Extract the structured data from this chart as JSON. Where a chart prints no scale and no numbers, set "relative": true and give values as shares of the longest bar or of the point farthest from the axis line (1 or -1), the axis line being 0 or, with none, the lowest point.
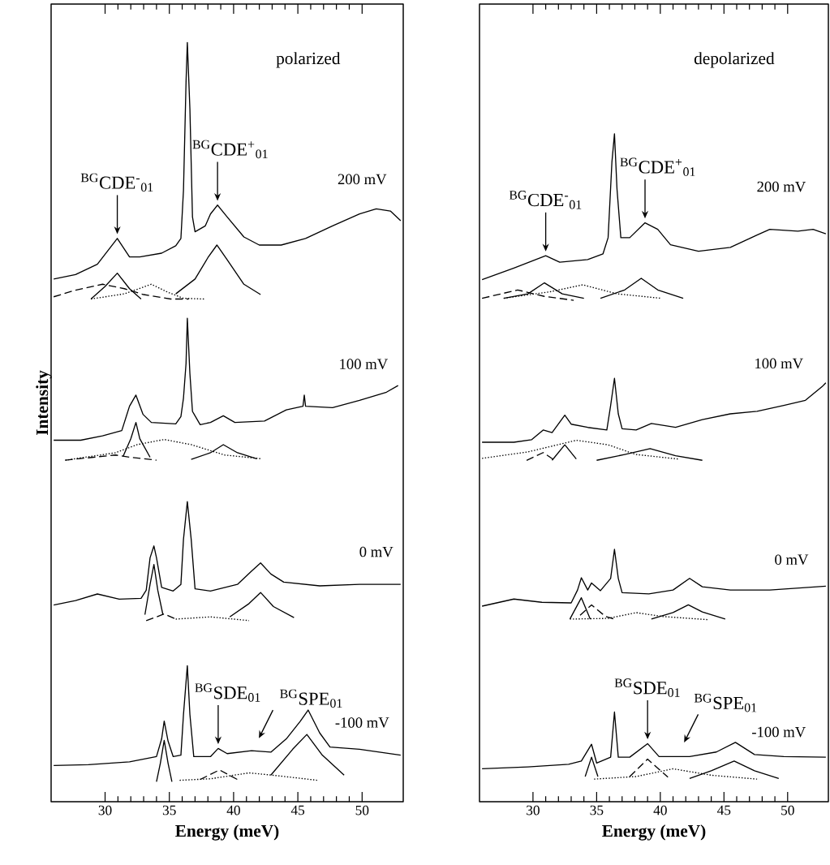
{
  "chart_data": [
    {
      "type": "line",
      "relative": true,
      "title": "polarized",
      "xlabel": "Energy (meV)",
      "ylabel": "Intensity",
      "xlim": [
        25.8,
        53.2
      ],
      "xticks": [
        30,
        35,
        40,
        45,
        50
      ],
      "series": [
        {
          "color": "#000000",
          "line_style": "solid",
          "x": [
            26.0,
            27.7,
            29.4,
            30.95,
            31.9,
            32.7,
            34.4,
            35.5,
            35.9,
            36.1,
            36.3,
            36.4,
            36.6,
            36.8,
            37.0,
            37.8,
            38.2,
            38.75,
            39.5,
            40.8,
            42.0,
            43.7,
            45.6,
            47.7,
            49.8,
            51.1,
            52.2,
            53.0
          ],
          "values": [
            0.68,
            0.686,
            0.7,
            0.735,
            0.71,
            0.71,
            0.715,
            0.725,
            0.735,
            0.8,
            0.947,
            1.0,
            0.91,
            0.764,
            0.744,
            0.752,
            0.768,
            0.78,
            0.764,
            0.737,
            0.726,
            0.726,
            0.735,
            0.752,
            0.768,
            0.775,
            0.772,
            0.759
          ]
        },
        {
          "color": "#000000",
          "line_style": "dashed",
          "x": [
            26.0,
            27.7,
            29.8,
            31.5,
            33.0,
            35.1,
            36.5
          ],
          "values": [
            0.656,
            0.665,
            0.673,
            0.667,
            0.659,
            0.653,
            0.653
          ]
        },
        {
          "color": "#000000",
          "line_style": "solid",
          "x": [
            28.9,
            30.0,
            30.95,
            31.9,
            32.8
          ],
          "values": [
            0.653,
            0.67,
            0.688,
            0.667,
            0.653
          ]
        },
        {
          "color": "#000000",
          "line_style": "dotted",
          "x": [
            28.9,
            31.5,
            33.6,
            34.9,
            36.1,
            37.7
          ],
          "values": [
            0.653,
            0.66,
            0.673,
            0.662,
            0.654,
            0.653
          ]
        },
        {
          "color": "#000000",
          "line_style": "solid",
          "x": [
            35.5,
            37.0,
            38.0,
            38.7,
            39.5,
            40.8,
            42.1
          ],
          "values": [
            0.66,
            0.68,
            0.709,
            0.726,
            0.706,
            0.673,
            0.659
          ]
        },
        {
          "color": "#000000",
          "line_style": "solid",
          "x": [
            26.0,
            28.1,
            29.8,
            31.3,
            31.9,
            32.4,
            32.95,
            33.6,
            35.5,
            35.9,
            36.1,
            36.3,
            36.4,
            36.6,
            36.8,
            37.4,
            38.2,
            39.2,
            40.1,
            42.4,
            44.1,
            45.4,
            45.5,
            45.6,
            47.7,
            49.8,
            51.9,
            52.8
          ],
          "values": [
            0.462,
            0.462,
            0.468,
            0.475,
            0.508,
            0.523,
            0.497,
            0.486,
            0.484,
            0.494,
            0.519,
            0.566,
            0.627,
            0.552,
            0.501,
            0.483,
            0.486,
            0.495,
            0.486,
            0.488,
            0.503,
            0.508,
            0.523,
            0.508,
            0.506,
            0.516,
            0.527,
            0.536
          ]
        },
        {
          "color": "#000000",
          "line_style": "dashed",
          "x": [
            26.9,
            30.8,
            31.9,
            34.0
          ],
          "values": [
            0.435,
            0.442,
            0.439,
            0.435
          ]
        },
        {
          "color": "#000000",
          "line_style": "solid",
          "x": [
            31.4,
            32.0,
            32.4,
            32.7,
            33.5
          ],
          "values": [
            0.44,
            0.464,
            0.486,
            0.464,
            0.439
          ]
        },
        {
          "color": "#000000",
          "line_style": "dotted",
          "x": [
            26.9,
            30.8,
            32.5,
            34.6,
            36.7,
            39.3,
            42.1
          ],
          "values": [
            0.435,
            0.445,
            0.456,
            0.463,
            0.456,
            0.442,
            0.437
          ]
        },
        {
          "color": "#000000",
          "line_style": "solid",
          "x": [
            36.7,
            38.2,
            39.2,
            40.3,
            41.8
          ],
          "values": [
            0.436,
            0.445,
            0.456,
            0.445,
            0.437
          ]
        },
        {
          "color": "#000000",
          "line_style": "solid",
          "x": [
            26.0,
            27.7,
            29.4,
            31.1,
            32.8,
            33.2,
            33.5,
            33.8,
            34.0,
            34.4,
            35.3,
            35.9,
            36.1,
            36.4,
            36.7,
            37.0,
            38.2,
            40.3,
            41.4,
            42.1,
            42.9,
            43.9,
            46.7,
            49.8,
            53.0
          ],
          "values": [
            0.239,
            0.245,
            0.254,
            0.247,
            0.248,
            0.259,
            0.303,
            0.319,
            0.303,
            0.263,
            0.258,
            0.267,
            0.328,
            0.379,
            0.328,
            0.261,
            0.258,
            0.267,
            0.285,
            0.296,
            0.281,
            0.27,
            0.265,
            0.267,
            0.267
          ]
        },
        {
          "color": "#000000",
          "line_style": "solid",
          "x": [
            33.1,
            33.5,
            33.8,
            34.1,
            34.5
          ],
          "values": [
            0.226,
            0.267,
            0.294,
            0.259,
            0.226
          ]
        },
        {
          "color": "#000000",
          "line_style": "dashed",
          "x": [
            33.2,
            34.0,
            34.6,
            35.5
          ],
          "values": [
            0.218,
            0.223,
            0.227,
            0.22
          ]
        },
        {
          "color": "#000000",
          "line_style": "dotted",
          "x": [
            35.5,
            38.2,
            41.2
          ],
          "values": [
            0.22,
            0.223,
            0.218
          ]
        },
        {
          "color": "#000000",
          "line_style": "solid",
          "x": [
            39.7,
            41.2,
            42.1,
            43.1,
            44.7
          ],
          "values": [
            0.223,
            0.241,
            0.256,
            0.237,
            0.222
          ]
        },
        {
          "color": "#000000",
          "line_style": "solid",
          "x": [
            26.0,
            28.7,
            31.9,
            34.0,
            34.4,
            34.6,
            34.9,
            35.3,
            35.9,
            36.1,
            36.4,
            36.6,
            36.9,
            38.2,
            38.8,
            39.5,
            41.4,
            42.9,
            44.1,
            45.2,
            45.8,
            46.7,
            47.5,
            49.8,
            53.0
          ],
          "values": [
            0.022,
            0.023,
            0.027,
            0.034,
            0.058,
            0.082,
            0.055,
            0.034,
            0.036,
            0.091,
            0.157,
            0.091,
            0.034,
            0.034,
            0.045,
            0.038,
            0.042,
            0.04,
            0.058,
            0.082,
            0.097,
            0.066,
            0.047,
            0.044,
            0.036
          ]
        },
        {
          "color": "#000000",
          "line_style": "solid",
          "x": [
            34.0,
            34.3,
            34.6,
            34.9,
            35.2
          ],
          "values": [
            0.0,
            0.025,
            0.056,
            0.025,
            0.0
          ]
        },
        {
          "color": "#000000",
          "line_style": "dotted",
          "x": [
            35.8,
            38.2,
            41.2,
            43.5,
            46.5
          ],
          "values": [
            0.002,
            0.004,
            0.012,
            0.008,
            0.002
          ]
        },
        {
          "color": "#000000",
          "line_style": "dashed",
          "x": [
            37.4,
            38.9,
            40.3
          ],
          "values": [
            0.003,
            0.016,
            0.003
          ]
        },
        {
          "color": "#000000",
          "line_style": "solid",
          "x": [
            42.9,
            44.6,
            45.7,
            46.9,
            48.6
          ],
          "values": [
            0.009,
            0.044,
            0.064,
            0.036,
            0.009
          ]
        }
      ],
      "annotations": [
        {
          "text": "$^{BG}$CDE$^{-}$$_{01}$",
          "x": 30.95,
          "y": 0.735
        },
        {
          "text": "$^{BG}$CDE$^{+}$$_{01}$",
          "x": 38.75,
          "y": 0.78
        },
        "200 mV",
        "100 mV",
        "0 mV",
        {
          "text": "$^{BG}$SDE$_{01}$",
          "x": 38.8,
          "y": 0.045
        },
        "$^{BG}$SPE$_{01}$",
        "-100 mV"
      ]
    },
    {
      "type": "line",
      "relative": true,
      "title": "depolarized",
      "xlabel": "Energy (meV)",
      "xlim": [
        25.8,
        53.2
      ],
      "xticks": [
        30,
        35,
        40,
        45,
        50
      ],
      "series": [
        {
          "color": "#000000",
          "line_style": "solid",
          "x": [
            26.0,
            28.5,
            31.0,
            32.1,
            34.3,
            35.5,
            35.9,
            36.2,
            36.4,
            36.6,
            36.9,
            37.6,
            38.8,
            39.8,
            40.8,
            43.0,
            45.5,
            47.6,
            48.6,
            50.8,
            52.0,
            53.0
          ],
          "values": [
            0.774,
            0.792,
            0.811,
            0.801,
            0.805,
            0.814,
            0.839,
            0.956,
            1.0,
            0.914,
            0.839,
            0.839,
            0.862,
            0.852,
            0.828,
            0.818,
            0.824,
            0.843,
            0.852,
            0.849,
            0.852,
            0.845
          ]
        },
        {
          "color": "#000000",
          "line_style": "dashed",
          "x": [
            26.0,
            28.8,
            30.9,
            33.2
          ],
          "values": [
            0.745,
            0.758,
            0.748,
            0.742
          ]
        },
        {
          "color": "#000000",
          "line_style": "solid",
          "x": [
            27.7,
            29.6,
            30.9,
            32.3,
            34.0
          ],
          "values": [
            0.745,
            0.752,
            0.769,
            0.752,
            0.745
          ]
        },
        {
          "color": "#000000",
          "line_style": "dotted",
          "x": [
            27.7,
            31.3,
            33.9,
            36.6,
            40.1
          ],
          "values": [
            0.745,
            0.755,
            0.766,
            0.752,
            0.745
          ]
        },
        {
          "color": "#000000",
          "line_style": "solid",
          "x": [
            35.3,
            37.2,
            38.5,
            39.8,
            41.8
          ],
          "values": [
            0.745,
            0.758,
            0.776,
            0.758,
            0.745
          ]
        },
        {
          "color": "#000000",
          "line_style": "solid",
          "x": [
            26.0,
            28.5,
            29.9,
            30.8,
            31.5,
            32.5,
            33.0,
            34.3,
            35.8,
            36.1,
            36.4,
            36.7,
            37.0,
            38.1,
            39.3,
            41.2,
            43.3,
            45.5,
            47.6,
            49.7,
            51.4,
            52.7,
            53.0
          ],
          "values": [
            0.522,
            0.522,
            0.526,
            0.541,
            0.537,
            0.564,
            0.55,
            0.545,
            0.541,
            0.579,
            0.621,
            0.566,
            0.543,
            0.541,
            0.551,
            0.545,
            0.557,
            0.566,
            0.57,
            0.579,
            0.587,
            0.608,
            0.614
          ]
        },
        {
          "color": "#000000",
          "line_style": "dotted",
          "x": [
            26.0,
            29.6,
            33.4,
            35.9,
            38.1,
            41.4
          ],
          "values": [
            0.497,
            0.507,
            0.525,
            0.518,
            0.503,
            0.496
          ]
        },
        {
          "color": "#000000",
          "line_style": "dashed",
          "x": [
            29.5,
            30.8,
            31.7
          ],
          "values": [
            0.494,
            0.506,
            0.494
          ]
        },
        {
          "color": "#000000",
          "line_style": "solid",
          "x": [
            31.5,
            32.5,
            33.4
          ],
          "values": [
            0.494,
            0.518,
            0.496
          ]
        },
        {
          "color": "#000000",
          "line_style": "solid",
          "x": [
            35.0,
            37.2,
            39.2,
            41.2,
            43.3
          ],
          "values": [
            0.494,
            0.503,
            0.512,
            0.501,
            0.494
          ]
        },
        {
          "color": "#000000",
          "line_style": "solid",
          "x": [
            26.0,
            28.5,
            30.7,
            33.0,
            33.5,
            33.8,
            34.3,
            34.6,
            35.3,
            36.1,
            36.4,
            36.7,
            37.0,
            39.1,
            41.0,
            42.3,
            43.3,
            45.5,
            48.6,
            53.0
          ],
          "values": [
            0.268,
            0.279,
            0.274,
            0.273,
            0.293,
            0.312,
            0.293,
            0.304,
            0.292,
            0.311,
            0.356,
            0.311,
            0.289,
            0.287,
            0.293,
            0.311,
            0.298,
            0.293,
            0.293,
            0.299
          ]
        },
        {
          "color": "#000000",
          "line_style": "solid",
          "x": [
            32.9,
            33.8,
            34.5
          ],
          "values": [
            0.248,
            0.281,
            0.248
          ]
        },
        {
          "color": "#000000",
          "line_style": "dashed",
          "x": [
            33.7,
            34.6,
            35.7,
            36.4
          ],
          "values": [
            0.254,
            0.27,
            0.252,
            0.248
          ]
        },
        {
          "color": "#000000",
          "line_style": "dotted",
          "x": [
            32.9,
            35.9,
            38.1,
            40.2,
            43.8
          ],
          "values": [
            0.248,
            0.249,
            0.258,
            0.252,
            0.247
          ]
        },
        {
          "color": "#000000",
          "line_style": "solid",
          "x": [
            39.3,
            41.0,
            42.2,
            43.3,
            45.1
          ],
          "values": [
            0.248,
            0.258,
            0.27,
            0.259,
            0.248
          ]
        },
        {
          "color": "#000000",
          "line_style": "solid",
          "x": [
            26.0,
            29.6,
            32.8,
            33.8,
            34.6,
            35.0,
            36.1,
            36.4,
            36.7,
            37.6,
            39.0,
            39.9,
            42.3,
            44.4,
            45.9,
            47.4,
            49.7,
            53.0
          ],
          "values": [
            0.016,
            0.019,
            0.023,
            0.028,
            0.054,
            0.025,
            0.034,
            0.104,
            0.034,
            0.034,
            0.055,
            0.035,
            0.035,
            0.042,
            0.057,
            0.038,
            0.035,
            0.034
          ]
        },
        {
          "color": "#000000",
          "line_style": "solid",
          "x": [
            34.1,
            34.6,
            35.1
          ],
          "values": [
            0.004,
            0.034,
            0.004
          ]
        },
        {
          "color": "#000000",
          "line_style": "dotted",
          "x": [
            34.8,
            38.1,
            41.0,
            44.0,
            47.6
          ],
          "values": [
            0.0,
            0.004,
            0.016,
            0.006,
            0.0
          ]
        },
        {
          "color": "#000000",
          "line_style": "dashed",
          "x": [
            37.6,
            39.0,
            40.6
          ],
          "values": [
            0.004,
            0.031,
            0.003
          ]
        },
        {
          "color": "#000000",
          "line_style": "solid",
          "x": [
            42.3,
            44.0,
            45.8,
            47.4,
            49.3
          ],
          "values": [
            0.001,
            0.013,
            0.028,
            0.013,
            0.001
          ]
        }
      ],
      "annotations": [
        {
          "text": "$^{BG}$CDE$^{-}$$_{01}$",
          "x": 31.0,
          "y": 0.811
        },
        {
          "text": "$^{BG}$CDE$^{+}$$_{01}$",
          "x": 38.8,
          "y": 0.862
        },
        "200 mV",
        "100 mV",
        "0 mV",
        {
          "text": "$^{BG}$SDE$_{01}$",
          "x": 39.0,
          "y": 0.055
        },
        "$^{BG}$SPE$_{01}$",
        "-100 mV"
      ]
    }
  ]
}
